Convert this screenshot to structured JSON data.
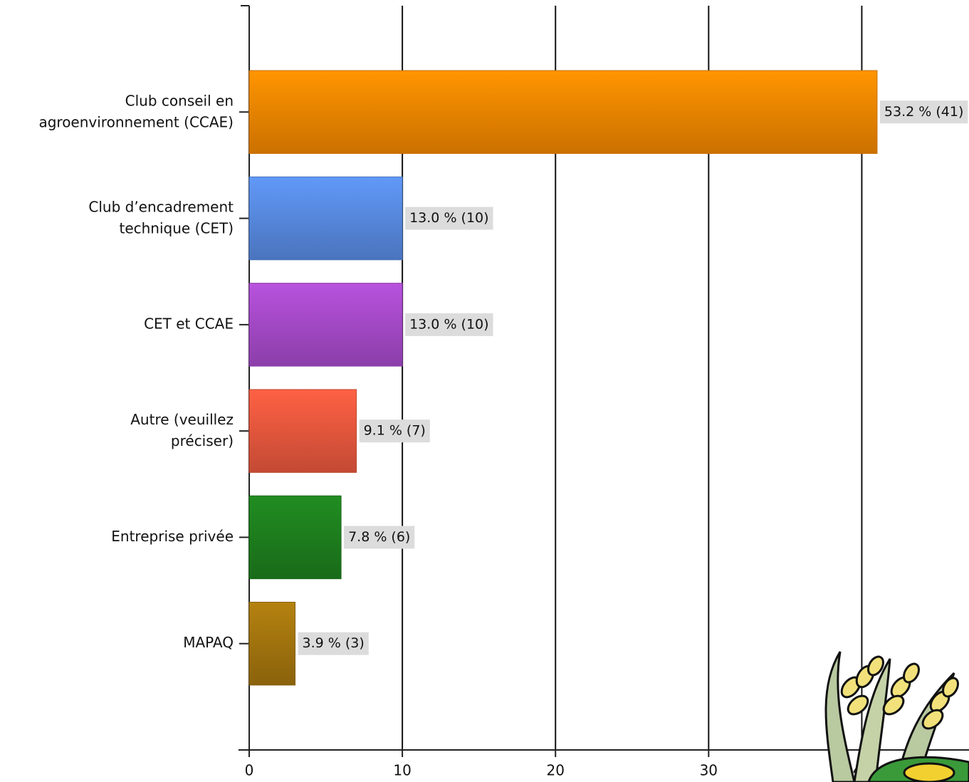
{
  "chart_data": {
    "type": "bar",
    "orientation": "horizontal",
    "categories": [
      "Club conseil en\nagroenvironnement (CCAE)",
      "Club d’encadrement\ntechnique (CET)",
      "CET et CCAE",
      "Autre (veuillez\npréciser)",
      "Entreprise privée",
      "MAPAQ"
    ],
    "values": [
      41,
      10,
      10,
      7,
      6,
      3
    ],
    "value_labels": [
      "53.2 % (41)",
      "13.0 % (10)",
      "13.0 % (10)",
      "9.1 % (7)",
      "7.8 % (6)",
      "3.9 % (3)"
    ],
    "colors": [
      "#f78a00",
      "#5a8ee6",
      "#aa4cce",
      "#ee5a3f",
      "#1f831f",
      "#a8780f"
    ],
    "xlim": [
      0,
      47
    ],
    "xticks": [
      0,
      10,
      20,
      30,
      40
    ],
    "grid": true
  }
}
